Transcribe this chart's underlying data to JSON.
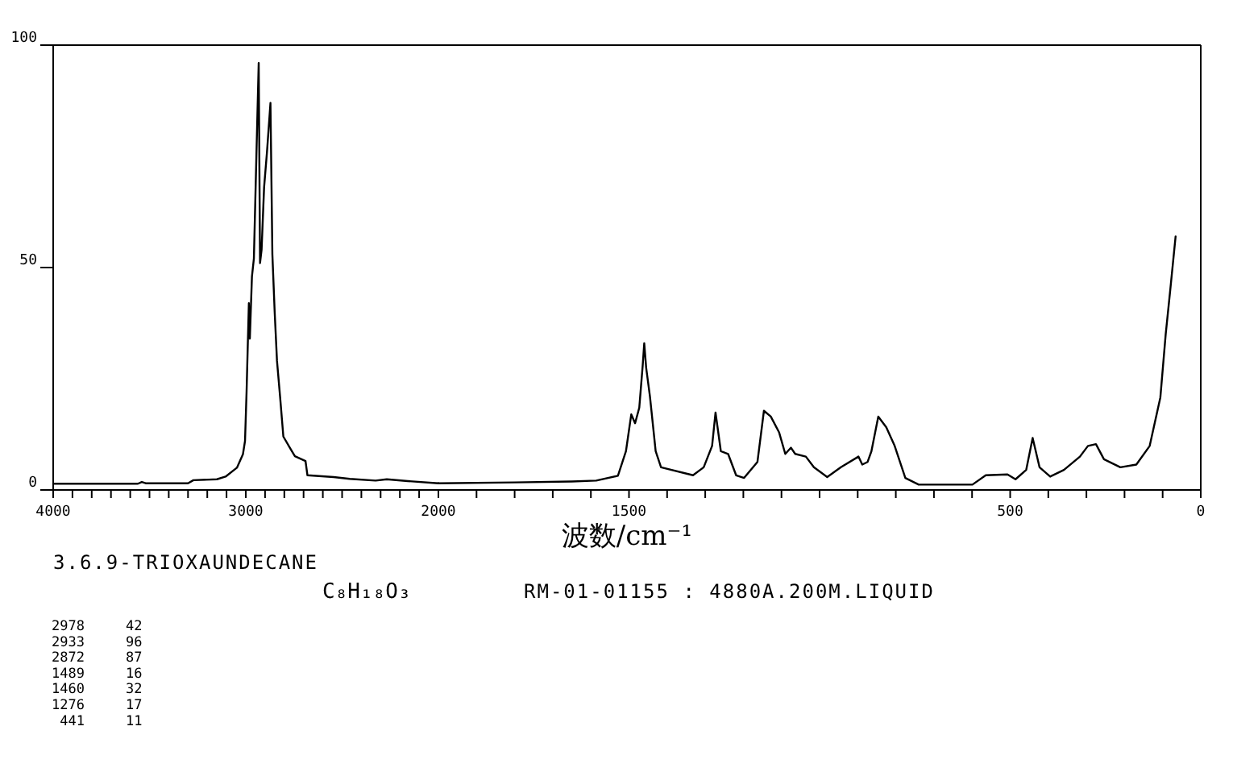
{
  "chart_data": [
    {
      "type": "line",
      "xlim": [
        4000,
        2000
      ],
      "ylim": [
        0,
        100
      ],
      "yticks": [
        0,
        50,
        100
      ],
      "xticks": [
        4000,
        {
          "value": 3900,
          "label": null
        },
        {
          "value": 3800,
          "label": null
        },
        {
          "value": 3700,
          "label": null
        },
        {
          "value": 3600,
          "label": null
        },
        {
          "value": 3500,
          "label": null
        },
        {
          "value": 3400,
          "label": null
        },
        {
          "value": 3300,
          "label": null
        },
        {
          "value": 3200,
          "label": null
        },
        {
          "value": 3100,
          "label": null
        },
        3000,
        {
          "value": 2900,
          "label": null
        },
        {
          "value": 2800,
          "label": null
        },
        {
          "value": 2700,
          "label": null
        },
        {
          "value": 2600,
          "label": null
        },
        {
          "value": 2500,
          "label": null
        },
        {
          "value": 2400,
          "label": null
        },
        {
          "value": 2300,
          "label": null
        },
        {
          "value": 2200,
          "label": null
        },
        {
          "value": 2100,
          "label": null
        },
        2000
      ],
      "series": [
        {
          "color": "#000000",
          "x": [
            4000,
            3800,
            3560,
            3540,
            3520,
            3300,
            3272,
            3150,
            3105,
            3046,
            3015,
            3004,
            2996,
            2984,
            2979,
            2968,
            2958,
            2945,
            2933,
            2926,
            2918,
            2905,
            2890,
            2872,
            2862,
            2850,
            2838,
            2822,
            2805,
            2770,
            2745,
            2690,
            2680,
            2544,
            2460,
            2326,
            2268,
            2159,
            2000
          ],
          "values": [
            1.4,
            1.4,
            1.4,
            1.8,
            1.5,
            1.5,
            2.2,
            2.4,
            3,
            5,
            8,
            11,
            22,
            42,
            34,
            48,
            52,
            75,
            96,
            51,
            54,
            68,
            76,
            87,
            53,
            40,
            29,
            21,
            12,
            9.4,
            7.6,
            6.5,
            3.3,
            2.9,
            2.5,
            2.1,
            2.4,
            2.0,
            1.5
          ]
        }
      ],
      "annotations": [
        "3.6.9-TRIOXAUNDECANE",
        "C₈H₁₈O₃",
        "RM-01-01155 : 4880A.200M.LIQUID",
        "2978     42",
        "2933     96",
        "2872     87",
        "1489     16",
        "1460     32",
        "1276     17",
        " 441     11"
      ]
    },
    {
      "type": "line",
      "xlim": [
        2000,
        0
      ],
      "ylim": [
        0,
        100
      ],
      "tick_labels": "x",
      "xlabel": "波数/cm⁻¹",
      "xticks": [
        {
          "value": 2000,
          "label": null
        },
        {
          "value": 1900,
          "label": null
        },
        {
          "value": 1800,
          "label": null
        },
        {
          "value": 1700,
          "label": null
        },
        {
          "value": 1600,
          "label": null
        },
        1500,
        {
          "value": 1400,
          "label": null
        },
        {
          "value": 1300,
          "label": null
        },
        {
          "value": 1200,
          "label": null
        },
        {
          "value": 1100,
          "label": null
        },
        {
          "value": 1000,
          "label": null
        },
        {
          "value": 900,
          "label": null
        },
        {
          "value": 800,
          "label": null
        },
        {
          "value": 700,
          "label": null
        },
        {
          "value": 600,
          "label": null
        },
        500,
        {
          "value": 400,
          "label": null
        },
        {
          "value": 300,
          "label": null
        },
        {
          "value": 200,
          "label": null
        },
        {
          "value": 100,
          "label": null
        },
        0
      ],
      "series": [
        {
          "color": "#000000",
          "x": [
            2000,
            1800,
            1650,
            1586,
            1529,
            1508,
            1494,
            1484,
            1473,
            1464,
            1460,
            1455,
            1445,
            1430,
            1416,
            1332,
            1304,
            1282,
            1273,
            1259,
            1240,
            1219,
            1198,
            1163,
            1146,
            1128,
            1106,
            1090,
            1075,
            1064,
            1036,
            1015,
            980,
            944,
            898,
            888,
            874,
            864,
            846,
            825,
            803,
            775,
            740,
            599,
            564,
            507,
            486,
            458,
            441,
            423,
            395,
            359,
            317,
            296,
            275,
            254,
            211,
            169,
            134,
            106,
            92,
            80,
            66
          ],
          "values": [
            1.5,
            1.7,
            1.9,
            2.1,
            3.2,
            8.7,
            17,
            15,
            18.5,
            28,
            33,
            27.5,
            21,
            8.7,
            5.1,
            3.3,
            5.1,
            9.9,
            17.4,
            8.7,
            8.1,
            3.3,
            2.7,
            6.3,
            17.8,
            16.5,
            12.9,
            8.1,
            9.5,
            8.1,
            7.5,
            5.1,
            2.9,
            5.1,
            7.5,
            5.7,
            6.3,
            8.7,
            16.5,
            14.1,
            9.9,
            2.7,
            1.2,
            1.2,
            3.3,
            3.5,
            2.4,
            4.5,
            11.7,
            5.1,
            3.0,
            4.5,
            7.5,
            9.9,
            10.3,
            6.9,
            5.1,
            5.7,
            9.9,
            20.8,
            35,
            45,
            57
          ]
        }
      ]
    }
  ]
}
